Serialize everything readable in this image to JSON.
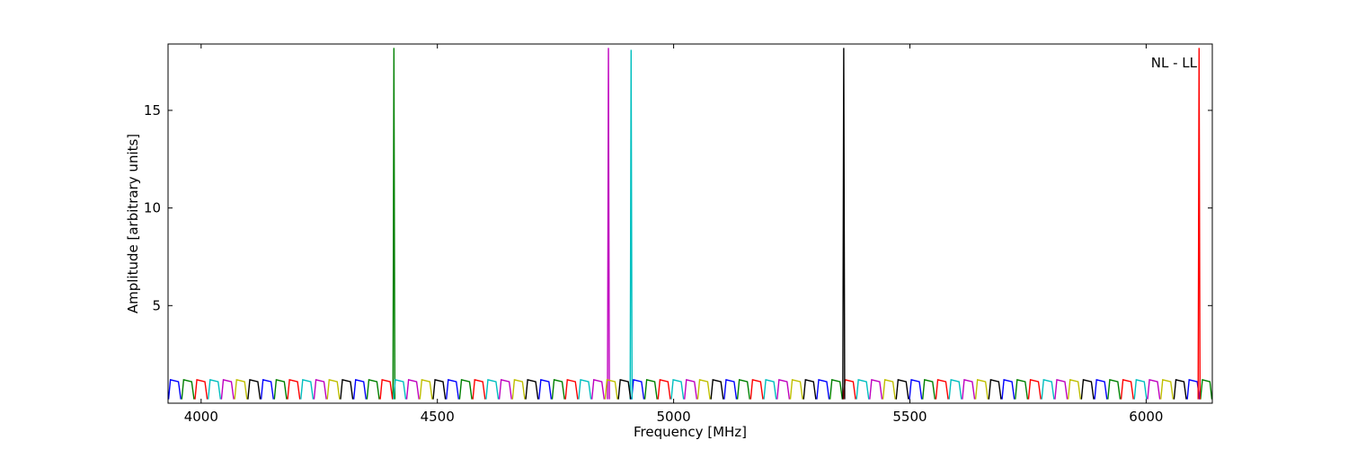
{
  "chart_data": {
    "type": "line",
    "xlabel": "Frequency [MHz]",
    "ylabel": "Amplitude [arbitrary units]",
    "annotation": "NL - LL",
    "xlim": [
      3930,
      6140
    ],
    "ylim": [
      0,
      18.4
    ],
    "xticks": [
      4000,
      4500,
      5000,
      5500,
      6000
    ],
    "yticks": [
      5,
      10,
      15
    ],
    "series": [
      {
        "color": "#0000ff",
        "x": [
          3931,
          3935,
          3952,
          3957,
          null,
          4127,
          4131,
          4148,
          4153,
          null,
          4323,
          4327,
          4344,
          4349,
          null,
          4519,
          4523,
          4540,
          4545,
          null,
          4715,
          4719,
          4736,
          4741,
          null,
          4911,
          4915,
          4932,
          4937,
          null,
          5107,
          5111,
          5128,
          5133,
          null,
          5303,
          5307,
          5324,
          5329,
          null,
          5499,
          5503,
          5520,
          5525,
          null,
          5695,
          5699,
          5716,
          5721,
          null,
          5891,
          5895,
          5912,
          5917,
          null,
          6087,
          6091,
          6108,
          6113
        ],
        "values": [
          0.2,
          1.2,
          1.1,
          0.2,
          null,
          0.2,
          1.2,
          1.1,
          0.2,
          null,
          0.2,
          1.2,
          1.1,
          0.2,
          null,
          0.2,
          1.2,
          1.1,
          0.2,
          null,
          0.2,
          1.2,
          1.1,
          0.2,
          null,
          0.2,
          1.2,
          1.1,
          0.2,
          null,
          0.2,
          1.2,
          1.1,
          0.2,
          null,
          0.2,
          1.2,
          1.1,
          0.2,
          null,
          0.2,
          1.2,
          1.1,
          0.2,
          null,
          0.2,
          1.2,
          1.1,
          0.2,
          null,
          0.2,
          1.2,
          1.1,
          0.2,
          null,
          0.2,
          1.2,
          1.1,
          0.2
        ]
      },
      {
        "color": "#008000",
        "x": [
          3959,
          3963,
          3980,
          3985,
          null,
          4155,
          4159,
          4176,
          4181,
          null,
          4351,
          4355,
          4372,
          4377,
          null,
          4547,
          4551,
          4568,
          4573,
          null,
          4743,
          4747,
          4764,
          4769,
          null,
          4939,
          4943,
          4960,
          4965,
          null,
          5135,
          5139,
          5156,
          5161,
          null,
          5331,
          5335,
          5352,
          5357,
          null,
          5527,
          5531,
          5548,
          5553,
          null,
          5723,
          5727,
          5744,
          5749,
          null,
          5919,
          5923,
          5940,
          5945,
          null,
          6115,
          6119,
          6135,
          6139,
          null,
          4406,
          4408,
          4410
        ],
        "values": [
          0.2,
          1.2,
          1.1,
          0.2,
          null,
          0.2,
          1.2,
          1.1,
          0.2,
          null,
          0.2,
          1.2,
          1.1,
          0.2,
          null,
          0.2,
          1.2,
          1.1,
          0.2,
          null,
          0.2,
          1.2,
          1.1,
          0.2,
          null,
          0.2,
          1.2,
          1.1,
          0.2,
          null,
          0.2,
          1.2,
          1.1,
          0.2,
          null,
          0.2,
          1.2,
          1.1,
          0.2,
          null,
          0.2,
          1.2,
          1.1,
          0.2,
          null,
          0.2,
          1.2,
          1.1,
          0.2,
          null,
          0.2,
          1.2,
          1.1,
          0.2,
          null,
          0.2,
          1.2,
          1.1,
          0.2,
          null,
          0.2,
          18.2,
          0.2
        ]
      },
      {
        "color": "#ff0000",
        "x": [
          3987,
          3991,
          4008,
          4013,
          null,
          4183,
          4187,
          4204,
          4209,
          null,
          4379,
          4383,
          4400,
          4405,
          null,
          4575,
          4579,
          4596,
          4601,
          null,
          4771,
          4775,
          4792,
          4797,
          null,
          4967,
          4971,
          4988,
          4993,
          null,
          5163,
          5167,
          5184,
          5189,
          null,
          5359,
          5363,
          5380,
          5385,
          null,
          5555,
          5559,
          5576,
          5581,
          null,
          5751,
          5755,
          5772,
          5777,
          null,
          5947,
          5951,
          5968,
          5973,
          null,
          6110,
          6112,
          6114
        ],
        "values": [
          0.2,
          1.2,
          1.1,
          0.2,
          null,
          0.2,
          1.2,
          1.1,
          0.2,
          null,
          0.2,
          1.2,
          1.1,
          0.2,
          null,
          0.2,
          1.2,
          1.1,
          0.2,
          null,
          0.2,
          1.2,
          1.1,
          0.2,
          null,
          0.2,
          1.2,
          1.1,
          0.2,
          null,
          0.2,
          1.2,
          1.1,
          0.2,
          null,
          0.2,
          1.2,
          1.1,
          0.2,
          null,
          0.2,
          1.2,
          1.1,
          0.2,
          null,
          0.2,
          1.2,
          1.1,
          0.2,
          null,
          0.2,
          1.2,
          1.1,
          0.2,
          null,
          0.2,
          18.2,
          0.2
        ]
      },
      {
        "color": "#00bfbf",
        "x": [
          4015,
          4019,
          4036,
          4041,
          null,
          4211,
          4215,
          4232,
          4237,
          null,
          4407,
          4411,
          4428,
          4433,
          null,
          4603,
          4607,
          4624,
          4629,
          null,
          4799,
          4803,
          4820,
          4825,
          null,
          4995,
          4999,
          5016,
          5021,
          null,
          5191,
          5195,
          5212,
          5217,
          null,
          5387,
          5391,
          5408,
          5413,
          null,
          5583,
          5587,
          5604,
          5609,
          null,
          5779,
          5783,
          5800,
          5805,
          null,
          5975,
          5979,
          5996,
          6001,
          null,
          4908,
          4910,
          4912
        ],
        "values": [
          0.2,
          1.2,
          1.1,
          0.2,
          null,
          0.2,
          1.2,
          1.1,
          0.2,
          null,
          0.2,
          1.2,
          1.1,
          0.2,
          null,
          0.2,
          1.2,
          1.1,
          0.2,
          null,
          0.2,
          1.2,
          1.1,
          0.2,
          null,
          0.2,
          1.2,
          1.1,
          0.2,
          null,
          0.2,
          1.2,
          1.1,
          0.2,
          null,
          0.2,
          1.2,
          1.1,
          0.2,
          null,
          0.2,
          1.2,
          1.1,
          0.2,
          null,
          0.2,
          1.2,
          1.1,
          0.2,
          null,
          0.2,
          1.2,
          1.1,
          0.2,
          null,
          0.2,
          18.1,
          0.2
        ]
      },
      {
        "color": "#bf00bf",
        "x": [
          4043,
          4047,
          4064,
          4069,
          null,
          4239,
          4243,
          4260,
          4265,
          null,
          4435,
          4439,
          4456,
          4461,
          null,
          4631,
          4635,
          4652,
          4657,
          null,
          4827,
          4831,
          4848,
          4853,
          null,
          5023,
          5027,
          5044,
          5049,
          null,
          5219,
          5223,
          5240,
          5245,
          null,
          5415,
          5419,
          5436,
          5441,
          null,
          5611,
          5615,
          5632,
          5637,
          null,
          5807,
          5811,
          5828,
          5833,
          null,
          6003,
          6007,
          6024,
          6029,
          null,
          4860,
          4862,
          4864
        ],
        "values": [
          0.2,
          1.2,
          1.1,
          0.2,
          null,
          0.2,
          1.2,
          1.1,
          0.2,
          null,
          0.2,
          1.2,
          1.1,
          0.2,
          null,
          0.2,
          1.2,
          1.1,
          0.2,
          null,
          0.2,
          1.2,
          1.1,
          0.2,
          null,
          0.2,
          1.2,
          1.1,
          0.2,
          null,
          0.2,
          1.2,
          1.1,
          0.2,
          null,
          0.2,
          1.2,
          1.1,
          0.2,
          null,
          0.2,
          1.2,
          1.1,
          0.2,
          null,
          0.2,
          1.2,
          1.1,
          0.2,
          null,
          0.2,
          1.2,
          1.1,
          0.2,
          null,
          0.2,
          18.2,
          0.2
        ]
      },
      {
        "color": "#bfbf00",
        "x": [
          4071,
          4075,
          4092,
          4097,
          null,
          4267,
          4271,
          4288,
          4293,
          null,
          4463,
          4467,
          4484,
          4489,
          null,
          4659,
          4663,
          4680,
          4685,
          null,
          4855,
          4859,
          4876,
          4881,
          null,
          5051,
          5055,
          5072,
          5077,
          null,
          5247,
          5251,
          5268,
          5273,
          null,
          5443,
          5447,
          5464,
          5469,
          null,
          5639,
          5643,
          5660,
          5665,
          null,
          5835,
          5839,
          5856,
          5861,
          null,
          6031,
          6035,
          6052,
          6057
        ],
        "values": [
          0.2,
          1.2,
          1.1,
          0.2,
          null,
          0.2,
          1.2,
          1.1,
          0.2,
          null,
          0.2,
          1.2,
          1.1,
          0.2,
          null,
          0.2,
          1.2,
          1.1,
          0.2,
          null,
          0.2,
          1.2,
          1.1,
          0.2,
          null,
          0.2,
          1.2,
          1.1,
          0.2,
          null,
          0.2,
          1.2,
          1.1,
          0.2,
          null,
          0.2,
          1.2,
          1.1,
          0.2,
          null,
          0.2,
          1.2,
          1.1,
          0.2,
          null,
          0.2,
          1.2,
          1.1,
          0.2,
          null,
          0.2,
          1.2,
          1.1,
          0.2
        ]
      },
      {
        "color": "#000000",
        "x": [
          4099,
          4103,
          4120,
          4125,
          null,
          4295,
          4299,
          4316,
          4321,
          null,
          4491,
          4495,
          4512,
          4517,
          null,
          4687,
          4691,
          4708,
          4713,
          null,
          4883,
          4887,
          4904,
          4909,
          null,
          5079,
          5083,
          5100,
          5105,
          null,
          5275,
          5279,
          5296,
          5301,
          null,
          5471,
          5475,
          5492,
          5497,
          null,
          5667,
          5671,
          5688,
          5693,
          null,
          5863,
          5867,
          5884,
          5889,
          null,
          6059,
          6063,
          6080,
          6085,
          null,
          5358,
          5360,
          5362
        ],
        "values": [
          0.2,
          1.2,
          1.1,
          0.2,
          null,
          0.2,
          1.2,
          1.1,
          0.2,
          null,
          0.2,
          1.2,
          1.1,
          0.2,
          null,
          0.2,
          1.2,
          1.1,
          0.2,
          null,
          0.2,
          1.2,
          1.1,
          0.2,
          null,
          0.2,
          1.2,
          1.1,
          0.2,
          null,
          0.2,
          1.2,
          1.1,
          0.2,
          null,
          0.2,
          1.2,
          1.1,
          0.2,
          null,
          0.2,
          1.2,
          1.1,
          0.2,
          null,
          0.2,
          1.2,
          1.1,
          0.2,
          null,
          0.2,
          1.2,
          1.1,
          0.2,
          null,
          0.2,
          18.2,
          0.2
        ]
      }
    ]
  }
}
